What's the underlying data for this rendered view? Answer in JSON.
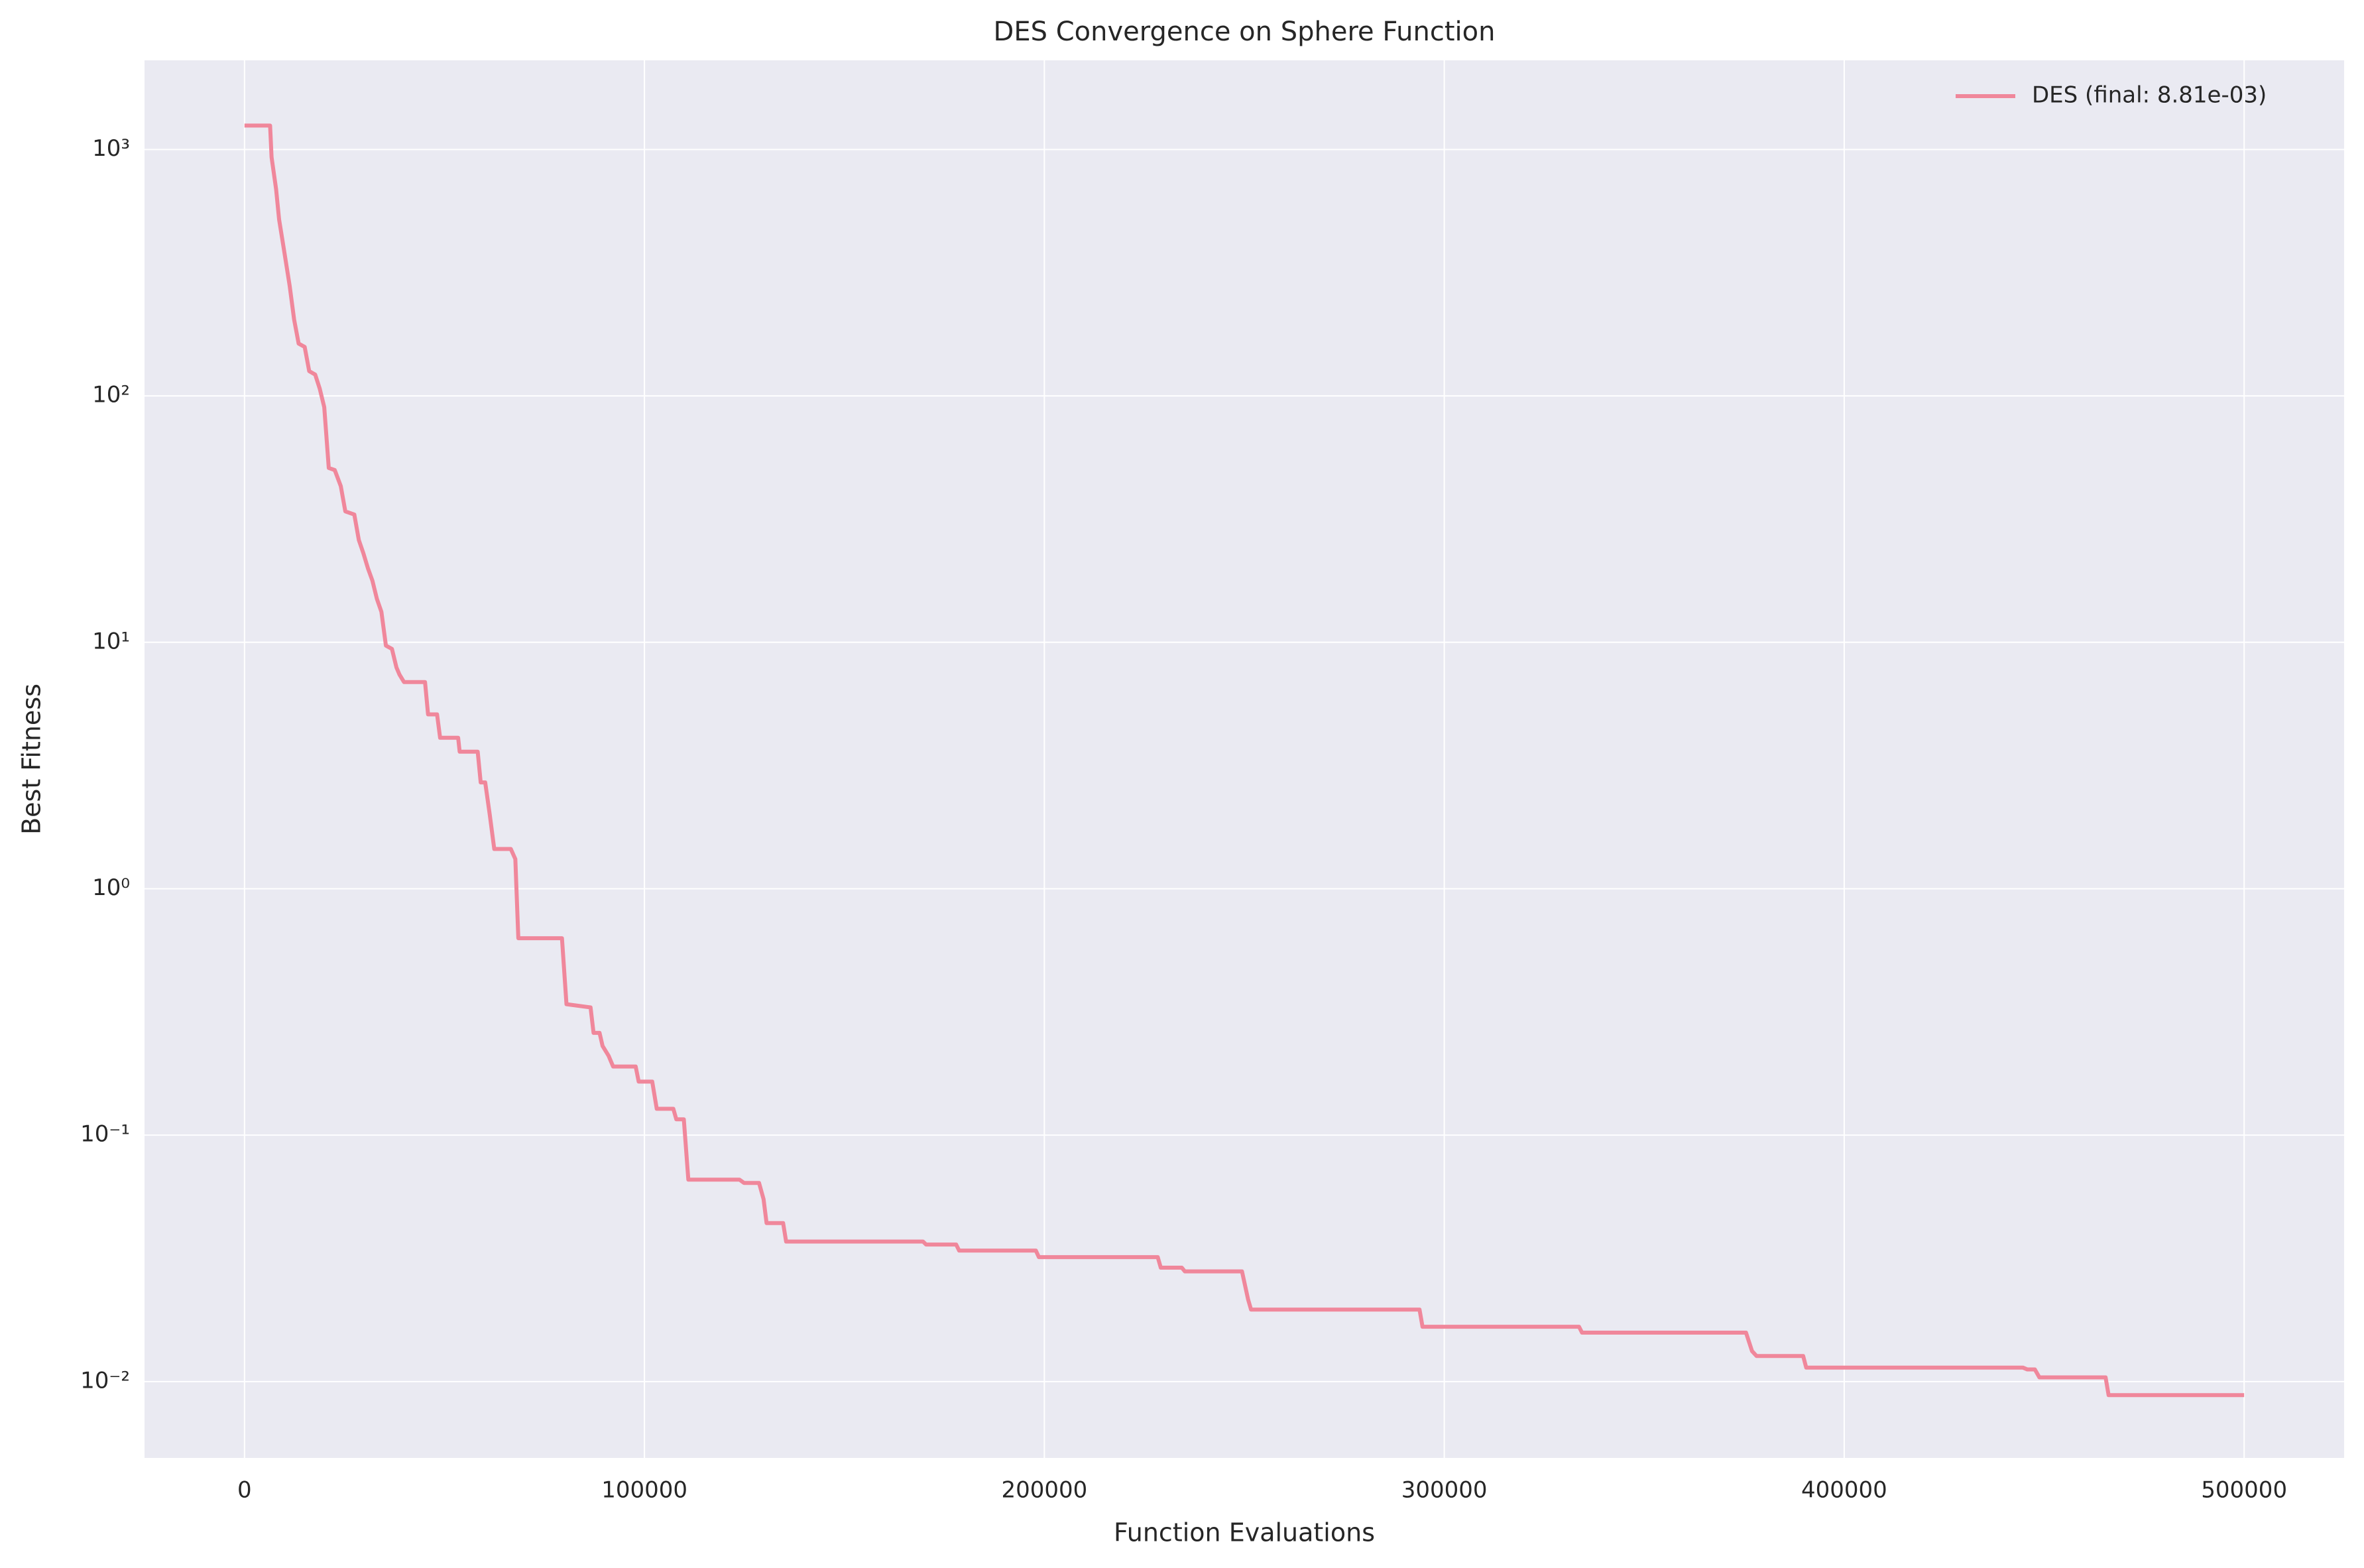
{
  "chart_data": {
    "type": "line",
    "title": "DES Convergence on Sphere Function",
    "xlabel": "Function Evaluations",
    "ylabel": "Best Fitness",
    "yscale": "log",
    "grid": true,
    "legend": "upper right",
    "xlim": [
      -25000,
      525000
    ],
    "xticks": [
      0,
      100000,
      200000,
      300000,
      400000,
      500000
    ],
    "ylim": [
      0.0049,
      2300
    ],
    "yticks": [
      {
        "value": 0.01,
        "label": "10⁻²"
      },
      {
        "value": 0.1,
        "label": "10⁻¹"
      },
      {
        "value": 1,
        "label": "10⁰"
      },
      {
        "value": 10,
        "label": "10¹"
      },
      {
        "value": 100,
        "label": "10²"
      },
      {
        "value": 1000,
        "label": "10³"
      }
    ],
    "x": [
      0,
      6400,
      6770,
      7900,
      8650,
      9780,
      11290,
      12410,
      13540,
      15050,
      16180,
      17680,
      18810,
      19940,
      21070,
      22570,
      24080,
      25210,
      27460,
      28590,
      29720,
      30850,
      31980,
      33110,
      34230,
      35360,
      36870,
      38000,
      38750,
      39880,
      45140,
      45900,
      48150,
      48910,
      53420,
      53800,
      58310,
      59060,
      60190,
      61320,
      62450,
      66590,
      67720,
      68470,
      79380,
      80510,
      86530,
      87280,
      88780,
      89540,
      91040,
      92170,
      97810,
      98560,
      101950,
      103080,
      107220,
      107970,
      109850,
      110980,
      123770,
      124900,
      128660,
      129790,
      130540,
      134680,
      135430,
      169670,
      170420,
      177940,
      178700,
      197880,
      198630,
      228350,
      229110,
      234370,
      235130,
      249420,
      250930,
      251680,
      293810,
      294560,
      333690,
      334440,
      375450,
      376950,
      378080,
      389740,
      390500,
      444670,
      445800,
      447680,
      448810,
      465360,
      466110,
      500000
    ],
    "series": [
      {
        "name": "DES (final: 8.81e-03)",
        "color": "#f0879b",
        "values": [
          1250,
          1250,
          930,
          690,
          520,
          400,
          280,
          204,
          163,
          158,
          126,
          122,
          107,
          90,
          51,
          50,
          43,
          34,
          33,
          26,
          23,
          20,
          17.8,
          15,
          13.3,
          9.7,
          9.4,
          7.9,
          7.4,
          6.9,
          6.9,
          5.1,
          5.1,
          4.1,
          4.1,
          3.6,
          3.6,
          2.7,
          2.7,
          2.0,
          1.45,
          1.45,
          1.32,
          0.63,
          0.63,
          0.34,
          0.33,
          0.26,
          0.26,
          0.23,
          0.21,
          0.19,
          0.19,
          0.165,
          0.165,
          0.128,
          0.128,
          0.116,
          0.116,
          0.066,
          0.066,
          0.064,
          0.064,
          0.055,
          0.044,
          0.044,
          0.037,
          0.037,
          0.036,
          0.036,
          0.034,
          0.034,
          0.032,
          0.032,
          0.029,
          0.029,
          0.028,
          0.028,
          0.0216,
          0.0196,
          0.0196,
          0.0167,
          0.0167,
          0.0158,
          0.0158,
          0.0133,
          0.0127,
          0.0127,
          0.0114,
          0.0114,
          0.0112,
          0.0112,
          0.0104,
          0.0104,
          0.00881,
          0.00881
        ]
      }
    ]
  }
}
